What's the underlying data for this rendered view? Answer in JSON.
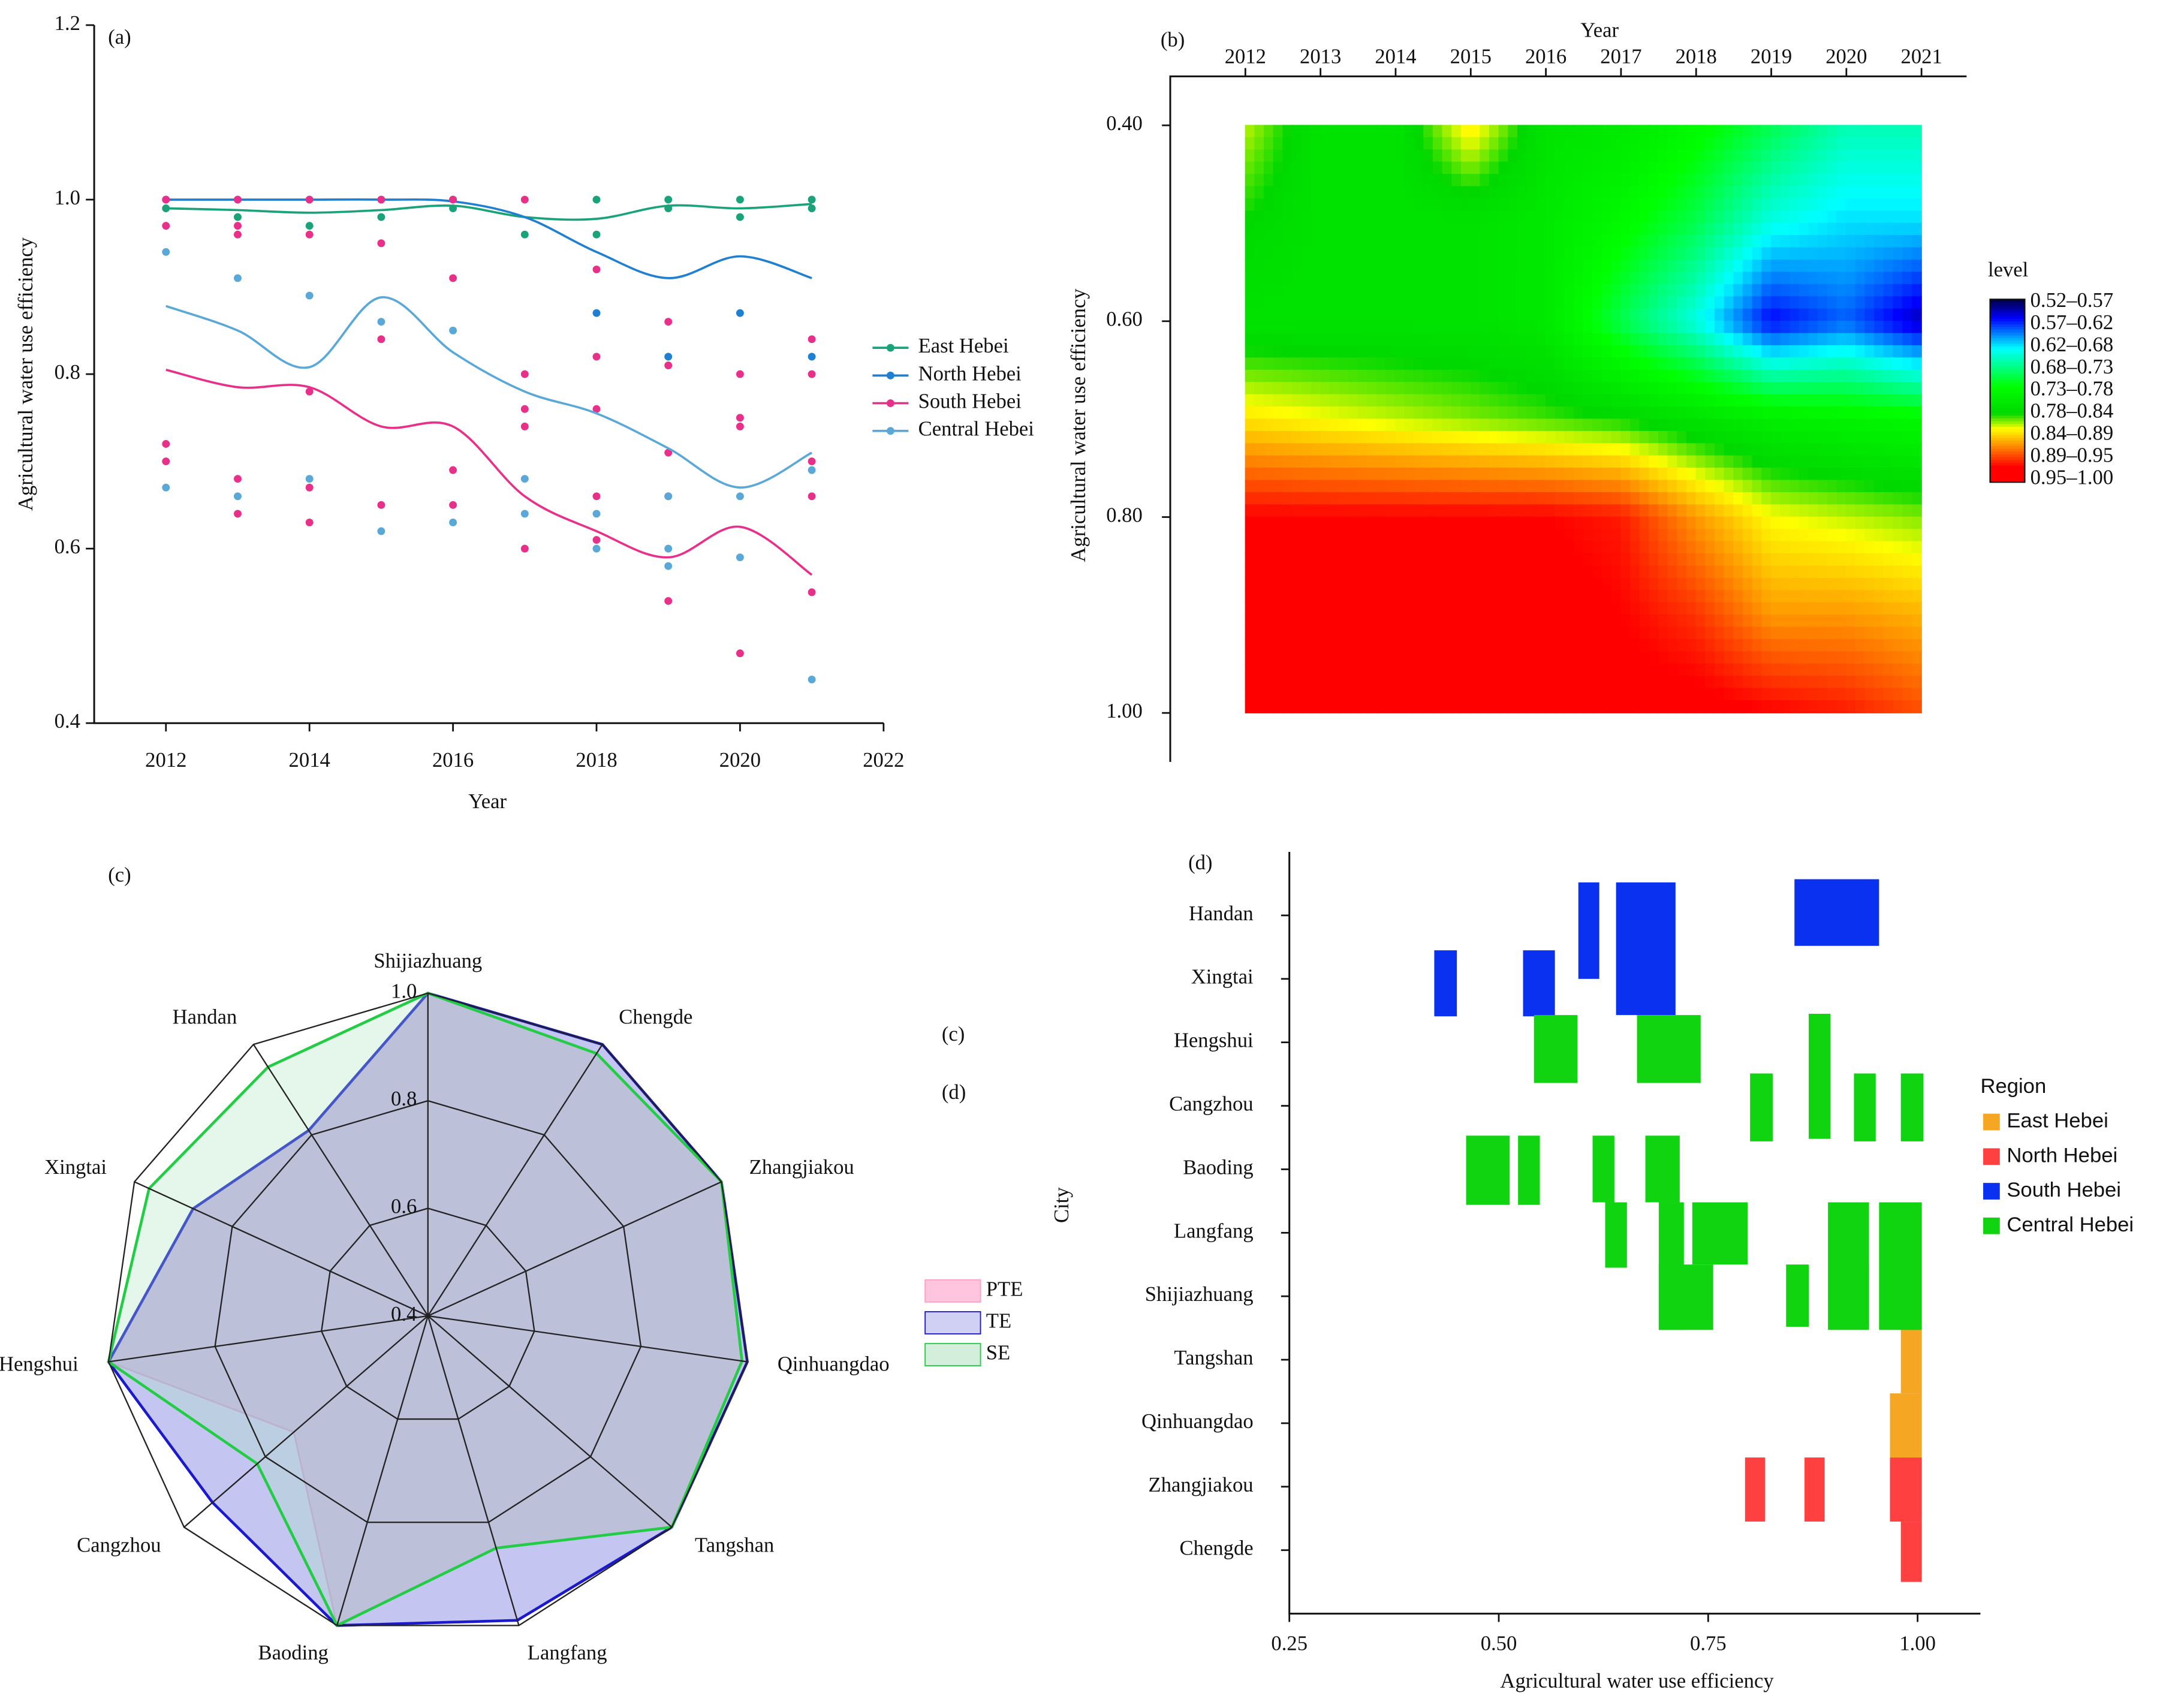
{
  "chart_data": [
    {
      "type": "line",
      "label": "(a)",
      "xlabel": "Year",
      "ylabel": "Agricultural water use efficiency",
      "x": [
        2012,
        2013,
        2014,
        2015,
        2016,
        2017,
        2018,
        2019,
        2020,
        2021
      ],
      "xlim": [
        2011,
        2022
      ],
      "xticks": [
        2012,
        2014,
        2016,
        2018,
        2020,
        2022
      ],
      "ylim": [
        0.4,
        1.2
      ],
      "yticks": [
        0.4,
        0.6,
        0.8,
        {
          "value": 1,
          "label": "1.0"
        },
        1.2
      ],
      "series": [
        {
          "name": "East Hebei",
          "color": "#1aa37a",
          "values": [
            0.99,
            0.988,
            0.985,
            0.988,
            0.993,
            0.98,
            0.978,
            0.993,
            0.99,
            0.995
          ],
          "points": {
            "x": [
              2012,
              2013,
              2014,
              2015,
              2016,
              2017,
              2018,
              2018,
              2019,
              2019,
              2020,
              2020,
              2021,
              2021
            ],
            "y": [
              0.99,
              0.98,
              0.97,
              0.98,
              0.99,
              0.96,
              1.0,
              0.96,
              1.0,
              0.99,
              1.0,
              0.98,
              1.0,
              0.99
            ]
          }
        },
        {
          "name": "North Hebei",
          "color": "#1f7fd1",
          "values": [
            1.0,
            1.0,
            1.0,
            1.0,
            0.998,
            0.98,
            0.94,
            0.91,
            0.935,
            0.91
          ],
          "points": {
            "x": [
              2012,
              2013,
              2014,
              2015,
              2016,
              2018,
              2019,
              2020,
              2021
            ],
            "y": [
              1.0,
              1.0,
              1.0,
              1.0,
              1.0,
              0.87,
              0.82,
              0.87,
              0.82
            ]
          }
        },
        {
          "name": "South Hebei",
          "color": "#e8308a",
          "values": [
            0.805,
            0.785,
            0.785,
            0.74,
            0.74,
            0.66,
            0.62,
            0.59,
            0.625,
            0.57
          ],
          "points": {
            "x": [
              2012,
              2012,
              2012,
              2012,
              2013,
              2013,
              2013,
              2013,
              2013,
              2014,
              2014,
              2014,
              2014,
              2014,
              2015,
              2015,
              2015,
              2015,
              2016,
              2016,
              2016,
              2016,
              2017,
              2017,
              2017,
              2017,
              2017,
              2018,
              2018,
              2018,
              2018,
              2018,
              2019,
              2019,
              2019,
              2019,
              2019,
              2020,
              2020,
              2020,
              2020,
              2021,
              2021,
              2021,
              2021,
              2021
            ],
            "y": [
              1.0,
              0.97,
              0.72,
              0.7,
              1.0,
              0.97,
              0.96,
              0.68,
              0.64,
              1.0,
              0.96,
              0.78,
              0.67,
              0.63,
              1.0,
              0.95,
              0.84,
              0.65,
              1.0,
              0.91,
              0.69,
              0.65,
              1.0,
              0.8,
              0.76,
              0.74,
              0.6,
              0.92,
              0.82,
              0.76,
              0.66,
              0.61,
              0.86,
              0.81,
              0.71,
              0.66,
              0.54,
              0.8,
              0.75,
              0.74,
              0.48,
              0.84,
              0.8,
              0.7,
              0.66,
              0.55
            ]
          }
        },
        {
          "name": "Central Hebei",
          "color": "#5aa8d8",
          "values": [
            0.878,
            0.85,
            0.808,
            0.888,
            0.825,
            0.78,
            0.755,
            0.715,
            0.67,
            0.71
          ],
          "points": {
            "x": [
              2012,
              2012,
              2013,
              2013,
              2014,
              2014,
              2015,
              2015,
              2016,
              2016,
              2017,
              2017,
              2018,
              2018,
              2019,
              2019,
              2019,
              2020,
              2020,
              2021,
              2021
            ],
            "y": [
              0.94,
              0.67,
              0.91,
              0.66,
              0.89,
              0.68,
              0.86,
              0.62,
              0.85,
              0.63,
              0.68,
              0.64,
              0.64,
              0.6,
              0.66,
              0.6,
              0.58,
              0.66,
              0.59,
              0.69,
              0.45
            ]
          }
        }
      ]
    },
    {
      "type": "heatmap",
      "label": "(b)",
      "xlabel": "Year",
      "ylabel": "Agricultural water use efficiency",
      "x": [
        2012,
        2013,
        2014,
        2015,
        2016,
        2017,
        2018,
        2019,
        2020,
        2021
      ],
      "xlim": [
        2011,
        2021.6
      ],
      "xticks": [
        2012,
        2013,
        2014,
        2015,
        2016,
        2017,
        2018,
        2019,
        2020,
        2021
      ],
      "y": [
        0.4,
        0.5,
        0.6,
        0.7,
        0.8,
        0.9,
        1.0
      ],
      "ylim": [
        0.35,
        1.05
      ],
      "y_reversed": true,
      "yticks": [
        {
          "value": 0.4,
          "label": "0.40"
        },
        {
          "value": 0.6,
          "label": "0.60"
        },
        {
          "value": 0.8,
          "label": "0.80"
        },
        {
          "value": 1,
          "label": "1.00"
        }
      ],
      "z": [
        [
          0.85,
          0.8,
          0.8,
          0.87,
          0.8,
          0.79,
          0.76,
          0.72,
          0.68,
          0.68
        ],
        [
          0.82,
          0.8,
          0.8,
          0.8,
          0.79,
          0.76,
          0.72,
          0.66,
          0.64,
          0.64
        ],
        [
          0.8,
          0.8,
          0.8,
          0.8,
          0.79,
          0.72,
          0.66,
          0.57,
          0.6,
          0.55
        ],
        [
          0.87,
          0.86,
          0.85,
          0.84,
          0.83,
          0.82,
          0.8,
          0.78,
          0.77,
          0.76
        ],
        [
          0.96,
          0.96,
          0.96,
          0.96,
          0.96,
          0.95,
          0.9,
          0.86,
          0.85,
          0.84
        ],
        [
          0.97,
          0.97,
          0.97,
          0.97,
          0.97,
          0.96,
          0.94,
          0.9,
          0.9,
          0.89
        ],
        [
          0.98,
          0.98,
          0.98,
          0.98,
          0.98,
          0.97,
          0.97,
          0.96,
          0.95,
          0.93
        ]
      ],
      "colorscale": [
        [
          0.52,
          "#000040"
        ],
        [
          0.57,
          "#0000ff"
        ],
        [
          0.65,
          "#00ffff"
        ],
        [
          0.75,
          "#00ff00"
        ],
        [
          0.82,
          "#00d800"
        ],
        [
          0.86,
          "#ffff00"
        ],
        [
          0.91,
          "#ff8000"
        ],
        [
          0.96,
          "#ff0000"
        ],
        [
          1.0,
          "#ff0000"
        ]
      ],
      "colorbar": {
        "title": "level",
        "range": [
          0.52,
          1.0
        ],
        "labels": [
          "0.52–0.57",
          "0.57–0.62",
          "0.62–0.68",
          "0.68–0.73",
          "0.73–0.78",
          "0.78–0.84",
          "0.84–0.89",
          "0.89–0.95",
          "0.95–1.00"
        ]
      }
    },
    {
      "type": "radar",
      "label": "(c)",
      "annotations": [
        "(c)",
        "(d)"
      ],
      "categories": [
        "Shijiazhuang",
        "Chengde",
        "Zhangjiakou",
        "Qinhuangdao",
        "Tangshan",
        "Langfang",
        "Baoding",
        "Cangzhou",
        "Hengshui",
        "Xingtai",
        "Handan"
      ],
      "rlim": [
        0.4,
        1.0
      ],
      "rticks": [
        0.4,
        0.6,
        0.8,
        {
          "value": 1,
          "label": "1.0"
        }
      ],
      "series": [
        {
          "name": "PTE",
          "color": "#ff9fc8",
          "values": [
            1.0,
            0.98,
            1.0,
            0.99,
            1.0,
            0.85,
            1.0,
            0.73,
            1.0,
            0.88,
            0.81
          ]
        },
        {
          "name": "TE",
          "color": "#1a1acc",
          "values": [
            1.0,
            1.0,
            1.0,
            1.0,
            1.0,
            0.99,
            1.0,
            0.93,
            1.0,
            0.88,
            0.81
          ]
        },
        {
          "name": "SE",
          "color": "#22cc44",
          "values": [
            1.0,
            0.98,
            1.0,
            0.99,
            1.0,
            0.85,
            1.0,
            0.82,
            1.0,
            0.97,
            0.95
          ]
        }
      ]
    },
    {
      "type": "bar",
      "label": "(d)",
      "xlabel": "Agricultural water use efficiency",
      "ylabel": "City",
      "legend_title": "Region",
      "categories": [
        "Handan",
        "Xingtai",
        "Hengshui",
        "Cangzhou",
        "Baoding",
        "Langfang",
        "Shijiazhuang",
        "Tangshan",
        "Qinhuangdao",
        "Zhangjiakou",
        "Chengde"
      ],
      "xlim": [
        0.25,
        1.075
      ],
      "xticks": [
        0.25,
        {
          "value": 0.5,
          "label": "0.50"
        },
        0.75,
        {
          "value": 1,
          "label": "1.00"
        }
      ],
      "series": [
        {
          "name": "East Hebei",
          "color": "#f5a623",
          "bars": [
            {
              "start": 0.98,
              "end": 1.005,
              "rows": [
                6.48,
                7.53
              ]
            },
            {
              "start": 0.967,
              "end": 1.005,
              "rows": [
                7.53,
                8.54
              ]
            }
          ]
        },
        {
          "name": "North Hebei",
          "color": "#ff4040",
          "bars": [
            {
              "start": 0.794,
              "end": 0.818,
              "rows": [
                8.54,
                9.55
              ]
            },
            {
              "start": 0.865,
              "end": 0.889,
              "rows": [
                8.54,
                9.55
              ]
            },
            {
              "start": 0.967,
              "end": 1.005,
              "rows": [
                8.54,
                9.55
              ]
            },
            {
              "start": 0.98,
              "end": 1.005,
              "rows": [
                9.55,
                10.5
              ]
            }
          ]
        },
        {
          "name": "South Hebei",
          "color": "#0a30f0",
          "bars": [
            {
              "start": 0.595,
              "end": 0.62,
              "rows": [
                -0.52,
                1.0
              ]
            },
            {
              "start": 0.64,
              "end": 0.711,
              "rows": [
                -0.52,
                1.57
              ]
            },
            {
              "start": 0.853,
              "end": 0.954,
              "rows": [
                -0.57,
                0.48
              ]
            },
            {
              "start": 0.423,
              "end": 0.45,
              "rows": [
                0.55,
                1.59
              ]
            },
            {
              "start": 0.529,
              "end": 0.567,
              "rows": [
                0.55,
                1.59
              ]
            }
          ]
        },
        {
          "name": "Central Hebei",
          "color": "#11d411",
          "bars": [
            {
              "start": 0.542,
              "end": 0.594,
              "rows": [
                1.57,
                2.64
              ]
            },
            {
              "start": 0.665,
              "end": 0.741,
              "rows": [
                1.57,
                2.64
              ]
            },
            {
              "start": 0.87,
              "end": 0.896,
              "rows": [
                1.55,
                3.52
              ]
            },
            {
              "start": 0.8,
              "end": 0.827,
              "rows": [
                2.49,
                3.56
              ]
            },
            {
              "start": 0.924,
              "end": 0.95,
              "rows": [
                2.49,
                3.56
              ]
            },
            {
              "start": 0.98,
              "end": 1.007,
              "rows": [
                2.49,
                3.56
              ]
            },
            {
              "start": 0.461,
              "end": 0.513,
              "rows": [
                3.47,
                4.56
              ]
            },
            {
              "start": 0.523,
              "end": 0.549,
              "rows": [
                3.47,
                4.56
              ]
            },
            {
              "start": 0.612,
              "end": 0.638,
              "rows": [
                3.47,
                4.52
              ]
            },
            {
              "start": 0.675,
              "end": 0.716,
              "rows": [
                3.47,
                4.52
              ]
            },
            {
              "start": 0.627,
              "end": 0.653,
              "rows": [
                4.52,
                5.55
              ]
            },
            {
              "start": 0.691,
              "end": 0.721,
              "rows": [
                4.52,
                6.53
              ]
            },
            {
              "start": 0.731,
              "end": 0.797,
              "rows": [
                4.52,
                5.5
              ]
            },
            {
              "start": 0.893,
              "end": 0.942,
              "rows": [
                4.52,
                6.53
              ]
            },
            {
              "start": 0.954,
              "end": 1.005,
              "rows": [
                4.52,
                6.53
              ]
            },
            {
              "start": 0.691,
              "end": 0.756,
              "rows": [
                5.5,
                6.53
              ]
            },
            {
              "start": 0.843,
              "end": 0.87,
              "rows": [
                5.5,
                6.48
              ]
            },
            {
              "start": 0.906,
              "end": 0.942,
              "rows": [
                5.5,
                6.48
              ]
            }
          ]
        }
      ]
    }
  ]
}
